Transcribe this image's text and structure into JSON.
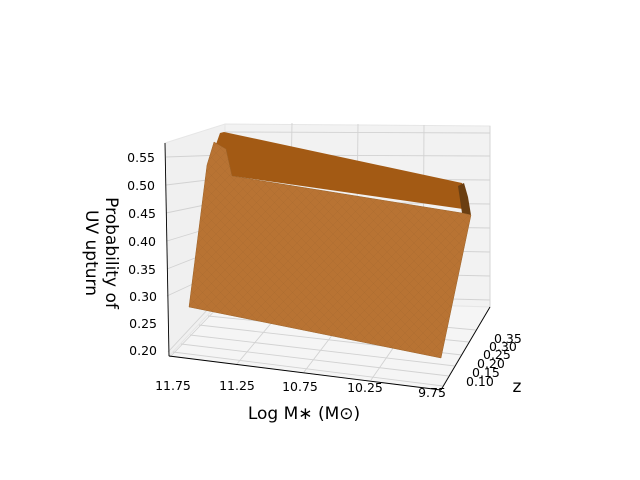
{
  "chart_data": {
    "type": "surface3d",
    "title": "",
    "xlabel": "Log M$_*$ (M$_\\odot$)",
    "xlabel_text": "Log M∗ (M⊙)",
    "ylabel": "z",
    "zlabel_line1": "Probability of",
    "zlabel_line2": "UV upturn",
    "x_ticks": [
      "11.75",
      "11.25",
      "10.75",
      "10.25",
      "9.75"
    ],
    "y_ticks": [
      "0.10",
      "0.15",
      "0.20",
      "0.25",
      "0.30",
      "0.35"
    ],
    "z_ticks": [
      "0.20",
      "0.25",
      "0.30",
      "0.35",
      "0.40",
      "0.45",
      "0.50",
      "0.55"
    ],
    "xlim": [
      9.75,
      11.75
    ],
    "ylim": [
      0.08,
      0.38
    ],
    "zlim": [
      0.18,
      0.56
    ],
    "grid": true,
    "surface_color": "#b87333",
    "surface_top_color": "#a35a14",
    "surface_edge_color": "#5a3510",
    "surface_points": [
      {
        "log_mass": 9.75,
        "z": 0.1,
        "probability": 0.21
      },
      {
        "log_mass": 11.75,
        "z": 0.1,
        "probability": 0.26
      },
      {
        "log_mass": 11.75,
        "z": 0.11,
        "probability": 0.55
      },
      {
        "log_mass": 9.75,
        "z": 0.11,
        "probability": 0.5
      }
    ]
  }
}
